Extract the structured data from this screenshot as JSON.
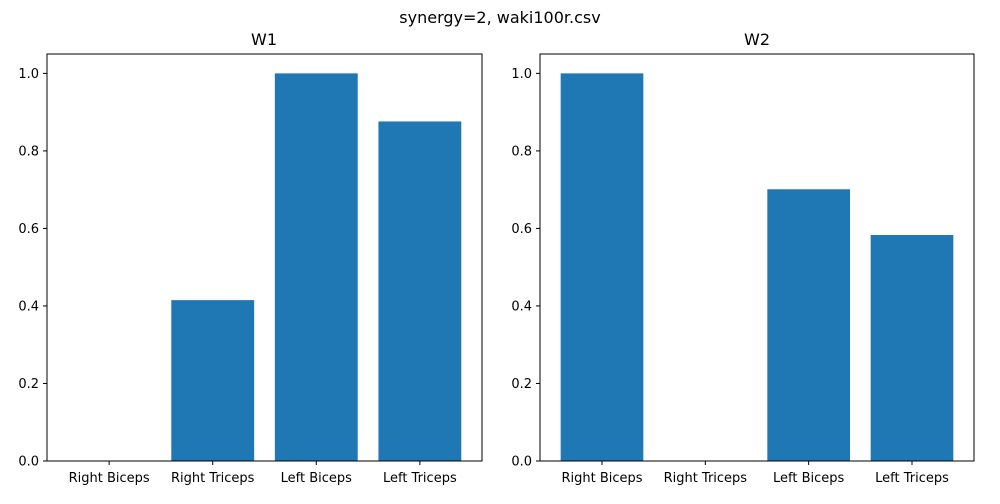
{
  "figure": {
    "suptitle": "synergy=2, waki100r.csv",
    "bar_color": "#1f77b4"
  },
  "chart_data": [
    {
      "type": "bar",
      "title": "W1",
      "xlabel": "",
      "ylabel": "",
      "categories": [
        "Right Biceps",
        "Right Triceps",
        "Left Biceps",
        "Left Triceps"
      ],
      "values": [
        0.0,
        0.415,
        1.0,
        0.876
      ],
      "ylim": [
        0,
        1.05
      ],
      "yticks": [
        0.0,
        0.2,
        0.4,
        0.6,
        0.8,
        1.0
      ],
      "ytick_labels": [
        "0.0",
        "0.2",
        "0.4",
        "0.6",
        "0.8",
        "1.0"
      ],
      "grid": false,
      "legend": "none"
    },
    {
      "type": "bar",
      "title": "W2",
      "xlabel": "",
      "ylabel": "",
      "categories": [
        "Right Biceps",
        "Right Triceps",
        "Left Biceps",
        "Left Triceps"
      ],
      "values": [
        1.0,
        0.0,
        0.701,
        0.583
      ],
      "ylim": [
        0,
        1.05
      ],
      "yticks": [
        0.0,
        0.2,
        0.4,
        0.6,
        0.8,
        1.0
      ],
      "ytick_labels": [
        "0.0",
        "0.2",
        "0.4",
        "0.6",
        "0.8",
        "1.0"
      ],
      "grid": false,
      "legend": "none"
    }
  ]
}
